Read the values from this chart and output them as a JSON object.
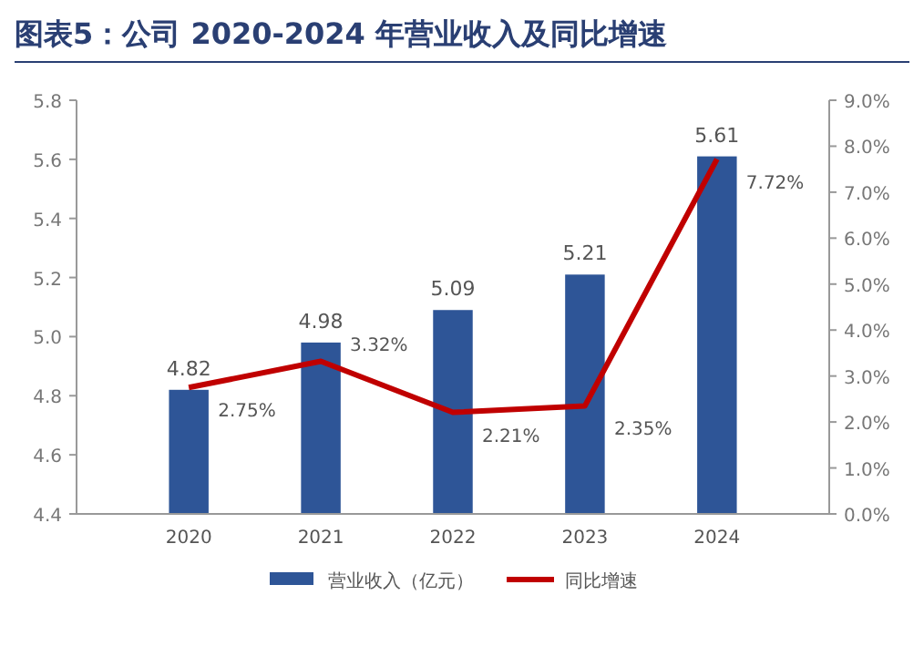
{
  "chart_data": {
    "type": "bar",
    "title": "图表5：公司 2020-2024 年营业收入及同比增速",
    "categories": [
      "2020",
      "2021",
      "2022",
      "2023",
      "2024"
    ],
    "series": [
      {
        "name": "营业收入（亿元）",
        "color": "#2e5597",
        "values": [
          4.82,
          4.98,
          5.09,
          5.21,
          5.61
        ],
        "value_labels": [
          "4.82",
          "4.98",
          "5.09",
          "5.21",
          "5.61"
        ]
      },
      {
        "name": "同比增速",
        "type": "line",
        "axis": "y2",
        "color": "#c00000",
        "values": [
          2.75,
          3.32,
          2.21,
          2.35,
          7.72
        ],
        "value_labels": [
          "2.75%",
          "3.32%",
          "2.21%",
          "2.35%",
          "7.72%"
        ]
      }
    ],
    "ylim": [
      4.4,
      5.8
    ],
    "yticks": [
      {
        "value": 4.4,
        "label": "4.4"
      },
      {
        "value": 4.6,
        "label": "4.6"
      },
      {
        "value": 4.8,
        "label": "4.8"
      },
      {
        "value": 5,
        "label": "5.0"
      },
      {
        "value": 5.2,
        "label": "5.2"
      },
      {
        "value": 5.4,
        "label": "5.4"
      },
      {
        "value": 5.6,
        "label": "5.6"
      },
      {
        "value": 5.8,
        "label": "5.8"
      }
    ],
    "y2lim": [
      0,
      9
    ],
    "y2ticks": [
      {
        "value": 0,
        "label": "0.0%"
      },
      {
        "value": 1,
        "label": "1.0%"
      },
      {
        "value": 2,
        "label": "2.0%"
      },
      {
        "value": 3,
        "label": "3.0%"
      },
      {
        "value": 4,
        "label": "4.0%"
      },
      {
        "value": 5,
        "label": "5.0%"
      },
      {
        "value": 6,
        "label": "6.0%"
      },
      {
        "value": 7,
        "label": "7.0%"
      },
      {
        "value": 8,
        "label": "8.0%"
      },
      {
        "value": 9,
        "label": "9.0%"
      }
    ],
    "legend": "bottom",
    "grid": false,
    "marker": "none",
    "line_style": "solid"
  }
}
